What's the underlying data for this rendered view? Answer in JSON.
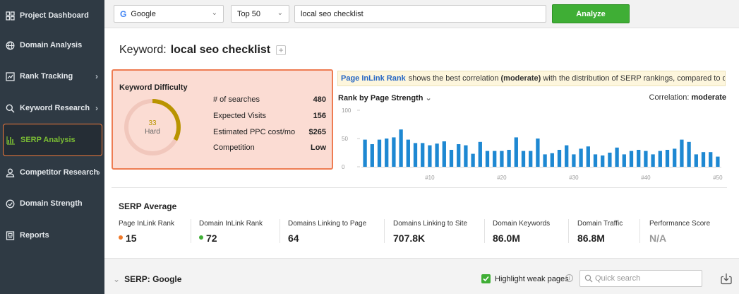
{
  "sidebar": {
    "items": [
      {
        "label": "Project Dashboard",
        "icon": "grid-icon",
        "chevron": false
      },
      {
        "label": "Domain Analysis",
        "icon": "globe-icon",
        "chevron": false
      },
      {
        "label": "Rank Tracking",
        "icon": "chart-box-icon",
        "chevron": true
      },
      {
        "label": "Keyword Research",
        "icon": "search-icon",
        "chevron": true
      },
      {
        "label": "SERP Analysis",
        "icon": "bar-chart-icon",
        "chevron": false,
        "active": true
      },
      {
        "label": "Competitor Research",
        "icon": "user-icon",
        "chevron": true
      },
      {
        "label": "Domain Strength",
        "icon": "gauge-icon",
        "chevron": false
      },
      {
        "label": "Reports",
        "icon": "report-icon",
        "chevron": false
      }
    ]
  },
  "toolbar": {
    "engine": "Google",
    "depth": "Top 50",
    "query": "local seo checklist",
    "analyze_label": "Analyze"
  },
  "keyword": {
    "prefix": "Keyword:",
    "value": "local seo checklist",
    "plus": "+"
  },
  "difficulty": {
    "title": "Keyword Difficulty",
    "value": "33",
    "level": "Hard",
    "score_fraction": 0.33,
    "stats": [
      {
        "label": "# of searches",
        "value": "480"
      },
      {
        "label": "Expected Visits",
        "value": "156"
      },
      {
        "label": "Estimated PPC cost/mo",
        "value": "$265"
      },
      {
        "label": "Competition",
        "value": "Low"
      }
    ]
  },
  "info": {
    "link": "Page InLink Rank",
    "text1": "shows the best correlation",
    "bold": "(moderate)",
    "text2": "with the distribution of SERP rankings, compared to other factors."
  },
  "rank_chart": {
    "heading": "Rank by Page Strength",
    "correlation_label": "Correlation:",
    "correlation_value": "moderate"
  },
  "chart_data": {
    "type": "bar",
    "title": "Rank by Page Strength",
    "xlabel": "",
    "ylabel": "",
    "ylim": [
      0,
      100
    ],
    "y_ticks": [
      "100",
      "50",
      "0"
    ],
    "x_tick_labels": [
      "#10",
      "#20",
      "#30",
      "#40",
      "#50"
    ],
    "x_tick_positions": [
      10,
      20,
      30,
      40,
      50
    ],
    "x": [
      1,
      2,
      3,
      4,
      5,
      6,
      7,
      8,
      9,
      10,
      11,
      12,
      13,
      14,
      15,
      16,
      17,
      18,
      19,
      20,
      21,
      22,
      23,
      24,
      25,
      26,
      27,
      28,
      29,
      30,
      31,
      32,
      33,
      34,
      35,
      36,
      37,
      38,
      39,
      40,
      41,
      42,
      43,
      44,
      45,
      46,
      47,
      48,
      49,
      50
    ],
    "values": [
      48,
      40,
      48,
      50,
      52,
      66,
      48,
      42,
      42,
      38,
      41,
      45,
      30,
      40,
      38,
      23,
      44,
      28,
      28,
      28,
      30,
      52,
      28,
      28,
      50,
      22,
      24,
      30,
      38,
      22,
      32,
      36,
      22,
      20,
      25,
      34,
      22,
      28,
      30,
      28,
      22,
      28,
      30,
      32,
      48,
      44,
      22,
      26,
      26,
      18
    ]
  },
  "serp_average": {
    "title": "SERP Average",
    "metrics": [
      {
        "label": "Page InLink Rank",
        "value": "15",
        "dot": "#f07a2a"
      },
      {
        "label": "Domain InLink Rank",
        "value": "72",
        "dot": "#3fae35"
      },
      {
        "label": "Domains Linking to Page",
        "value": "64"
      },
      {
        "label": "Domains Linking to Site",
        "value": "707.8K"
      },
      {
        "label": "Domain Keywords",
        "value": "86.0M"
      },
      {
        "label": "Domain Traffic",
        "value": "86.8M"
      },
      {
        "label": "Performance Score",
        "value": "N/A",
        "muted": true
      }
    ]
  },
  "serp_bar": {
    "title": "SERP: Google",
    "highlight_label": "Highlight weak pages",
    "highlight_checked": true,
    "info": "i",
    "search_placeholder": "Quick search"
  },
  "colors": {
    "accent_green": "#3fae35",
    "bar_blue": "#1e88d2",
    "active_border": "#f07a3c",
    "sidebar_bg": "#2f3a44",
    "gauge_gold": "#b99400"
  }
}
